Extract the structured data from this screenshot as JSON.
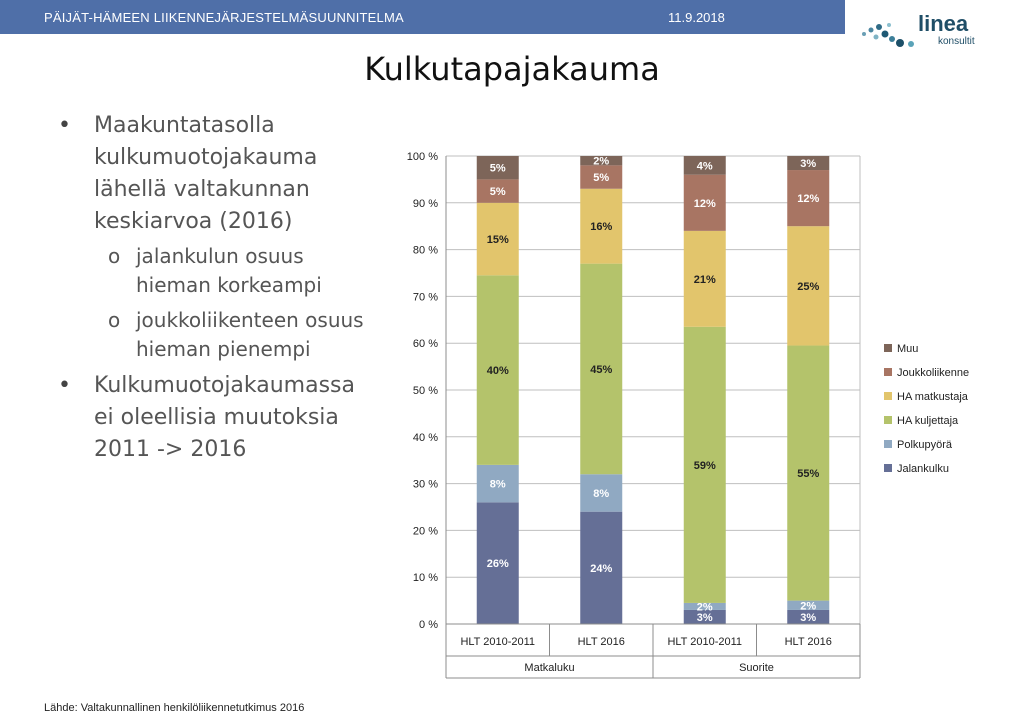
{
  "header": {
    "title": "PÄIJÄT-HÄMEEN  LIIKENNEJÄRJESTELMÄSUUNNITELMA",
    "date": "11.9.2018"
  },
  "logo": {
    "name": "linea",
    "sub": "konsultit"
  },
  "page_title": "Kulkutapajakauma",
  "bullets": [
    {
      "level": 1,
      "text_lines": [
        "Maakuntatasolla",
        "kulkumuotojakauma",
        "lähellä valtakunnan",
        "keskiarvoa (2016)"
      ]
    },
    {
      "level": 2,
      "text_lines": [
        "jalankulun osuus",
        "hieman korkeampi"
      ]
    },
    {
      "level": 2,
      "text_lines": [
        "joukkoliikenteen osuus",
        "hieman pienempi"
      ]
    },
    {
      "level": 1,
      "text_lines": [
        "Kulkumuotojakaumassa",
        "ei oleellisia muutoksia",
        "2011 -> 2016"
      ]
    }
  ],
  "source": "Lähde: Valtakunnallinen henkilöliikennetutkimus 2016",
  "chart_data": {
    "type": "bar",
    "stacked": true,
    "categories": [
      "HLT 2010-2011",
      "HLT 2016",
      "HLT 2010-2011",
      "HLT 2016"
    ],
    "groups": [
      {
        "label": "Matkaluku",
        "span": 2
      },
      {
        "label": "Suorite",
        "span": 2
      }
    ],
    "ylim": [
      0,
      100
    ],
    "yticks": [
      "0 %",
      "10 %",
      "20 %",
      "30 %",
      "40 %",
      "50 %",
      "60 %",
      "70 %",
      "80 %",
      "90 %",
      "100 %"
    ],
    "grid": true,
    "legend_position": "right",
    "series": [
      {
        "name": "Jalankulku",
        "color": "#656f96",
        "values": [
          26,
          24,
          3,
          3
        ],
        "labels": [
          "26%",
          "24%",
          "3%",
          "3%"
        ]
      },
      {
        "name": "Polkupyörä",
        "color": "#90a9c2",
        "values": [
          8,
          8,
          1.5,
          2
        ],
        "labels": [
          "8%",
          "8%",
          "2%",
          "2%"
        ]
      },
      {
        "name": "HA kuljettaja",
        "color": "#b4c36b",
        "values": [
          40.5,
          45,
          59,
          54.5
        ],
        "labels": [
          "40%",
          "45%",
          "59%",
          "55%"
        ]
      },
      {
        "name": "HA matkustaja",
        "color": "#e2c56c",
        "values": [
          15.5,
          16,
          20.5,
          25.5
        ],
        "labels": [
          "15%",
          "16%",
          "21%",
          "25%"
        ]
      },
      {
        "name": "Joukkoliikenne",
        "color": "#a87563",
        "values": [
          5,
          5,
          12,
          12
        ],
        "labels": [
          "5%",
          "5%",
          "12%",
          "12%"
        ]
      },
      {
        "name": "Muu",
        "color": "#7d6559",
        "values": [
          5,
          2,
          4,
          3
        ],
        "labels": [
          "5%",
          "2%",
          "4%",
          "3%"
        ]
      }
    ]
  }
}
